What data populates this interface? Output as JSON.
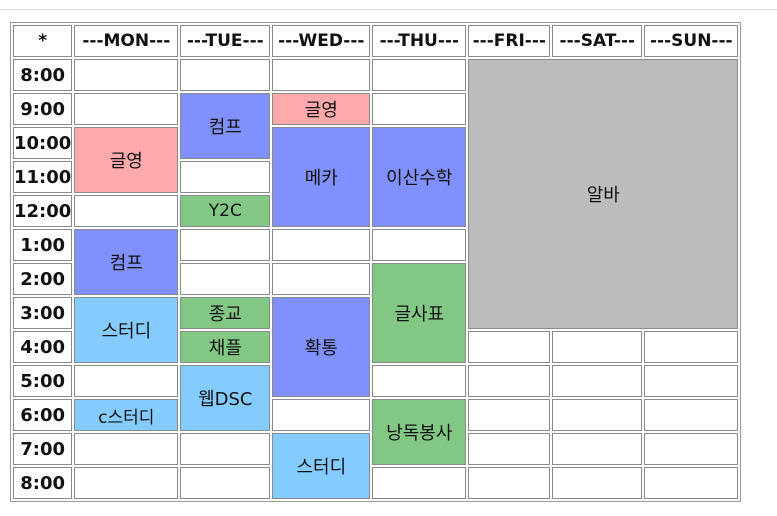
{
  "days": [
    "---MON---",
    "---TUE---",
    "---WED---",
    "---THU---",
    "---FRI---",
    "---SAT---",
    "---SUN---"
  ],
  "corner": "*",
  "times": [
    "8:00",
    "9:00",
    "10:00",
    "11:00",
    "12:00",
    "1:00",
    "2:00",
    "3:00",
    "4:00",
    "5:00",
    "6:00",
    "7:00",
    "8:00"
  ],
  "events": {
    "mon_geulyeong": "글영",
    "mon_keompeu": "컴프",
    "mon_seuteodi": "스터디",
    "mon_cseuteodi": "c스터디",
    "tue_keompeu": "컴프",
    "tue_y2c": "Y2C",
    "tue_jonggyo": "종교",
    "tue_chaepeul": "채플",
    "tue_webdsc": "웹DSC",
    "wed_geulyeong": "글영",
    "wed_meka": "메카",
    "wed_hwaktong": "확통",
    "wed_seuteodi": "스터디",
    "thu_isansuhak": "이산수학",
    "thu_geulsapyo": "글사표",
    "thu_nangdok": "낭독봉사",
    "fri_sat_sun_alba": "알바"
  },
  "colors": {
    "pink": "#ffaaaa",
    "blue": "#8091ff",
    "green": "#82c884",
    "sky": "#84cbff",
    "gray": "#bcbcbc"
  }
}
